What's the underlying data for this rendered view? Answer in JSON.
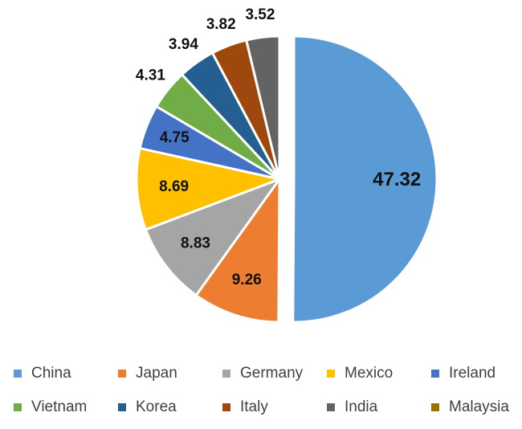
{
  "chart_data": {
    "type": "pie",
    "title": "",
    "categories": [
      "China",
      "Japan",
      "Germany",
      "Mexico",
      "Ireland",
      "Vietnam",
      "Korea",
      "Italy",
      "India",
      "Malaysia"
    ],
    "values": [
      47.32,
      9.26,
      8.83,
      8.69,
      4.75,
      4.31,
      3.94,
      3.82,
      3.52,
      0
    ],
    "labels": [
      "47.32",
      "9.26",
      "8.83",
      "8.69",
      "4.75",
      "4.31",
      "3.94",
      "3.82",
      "3.52",
      ""
    ],
    "colors": [
      "#5B9BD5",
      "#ED7D31",
      "#A5A5A5",
      "#FFC000",
      "#4472C4",
      "#70AD47",
      "#255E91",
      "#9E480E",
      "#636363",
      "#997300"
    ],
    "exploded": [
      "China"
    ],
    "legend_position": "bottom",
    "start_angle": "12 o'clock",
    "direction": "clockwise"
  }
}
